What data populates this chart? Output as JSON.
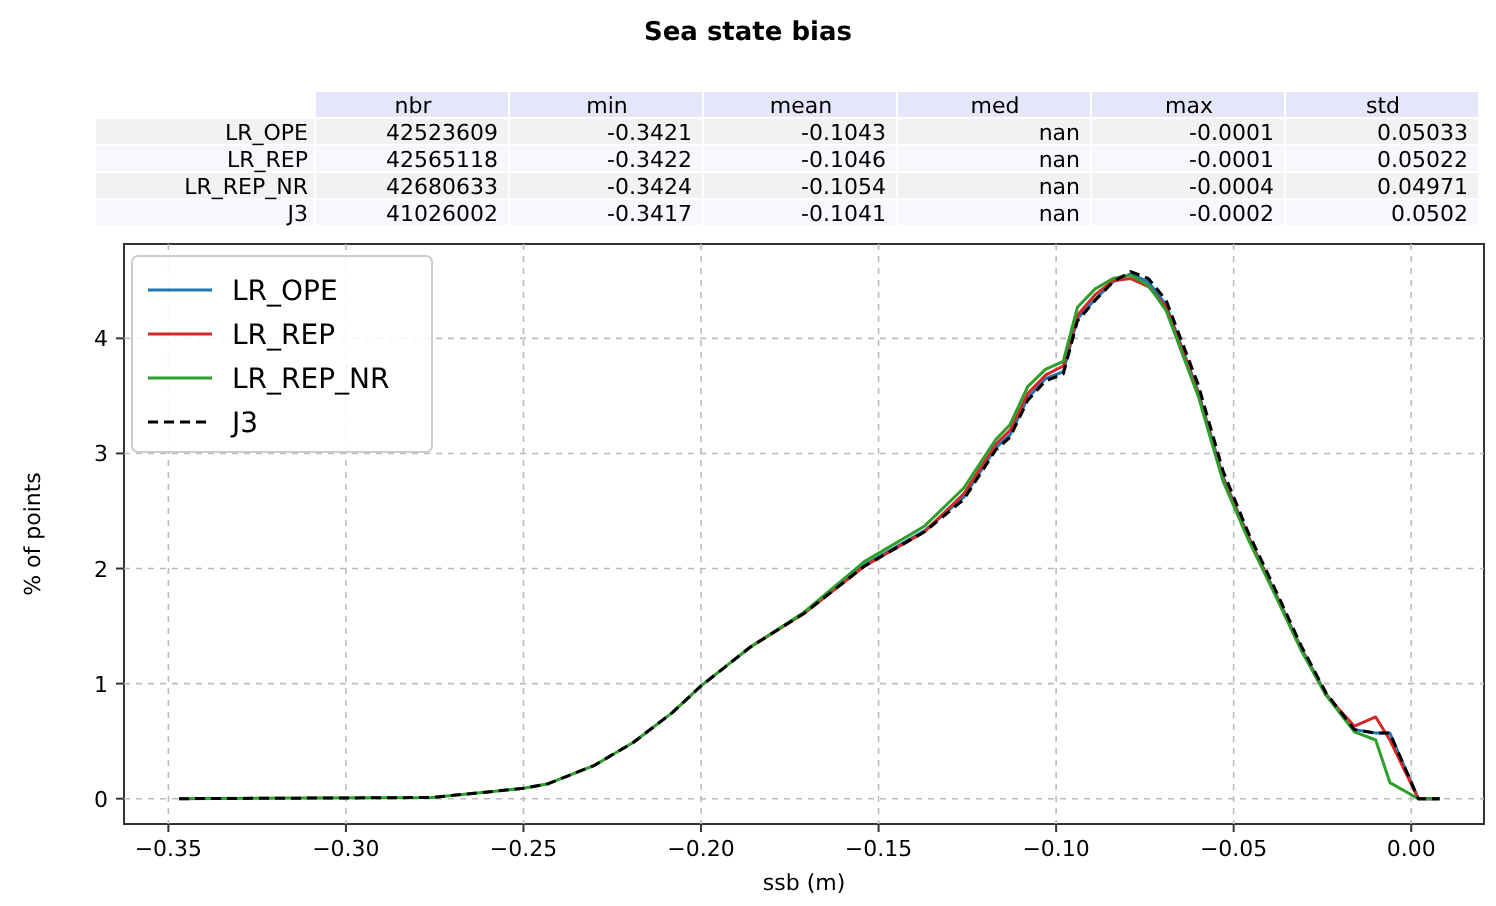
{
  "chart_data": [
    {
      "type": "other",
      "title": "Sea state bias",
      "categories": [
        "nbr",
        "min",
        "mean",
        "med",
        "max",
        "std"
      ],
      "y_categories": [
        "LR_OPE",
        "LR_REP",
        "LR_REP_NR",
        "J3"
      ],
      "cell_labels": [
        [
          "42523609",
          "-0.3421",
          "-0.1043",
          "nan",
          "-0.0001",
          "0.05033"
        ],
        [
          "42565118",
          "-0.3422",
          "-0.1046",
          "nan",
          "-0.0001",
          "0.05022"
        ],
        [
          "42680633",
          "-0.3424",
          "-0.1054",
          "nan",
          "-0.0004",
          "0.04971"
        ],
        [
          "41026002",
          "-0.3417",
          "-0.1041",
          "nan",
          "-0.0002",
          "0.0502"
        ]
      ]
    },
    {
      "type": "line",
      "xlabel": "ssb (m)",
      "ylabel": "% of points",
      "x": [
        -0.347,
        -0.276,
        -0.263,
        -0.25,
        -0.243,
        -0.23,
        -0.219,
        -0.208,
        -0.2,
        -0.186,
        -0.171,
        -0.154,
        -0.137,
        -0.126,
        -0.117,
        -0.113,
        -0.108,
        -0.103,
        -0.098,
        -0.094,
        -0.089,
        -0.084,
        -0.079,
        -0.074,
        -0.069,
        -0.06,
        -0.053,
        -0.046,
        -0.038,
        -0.031,
        -0.024,
        -0.016,
        -0.01,
        -0.006,
        0.002,
        0.008
      ],
      "series": [
        {
          "name": "LR_OPE",
          "color": "#1f77b4",
          "values": [
            null,
            null,
            null,
            null,
            null,
            null,
            null,
            null,
            null,
            null,
            1.61,
            2.03,
            2.33,
            2.62,
            3.05,
            3.16,
            3.48,
            3.65,
            3.71,
            4.17,
            4.34,
            4.49,
            4.56,
            4.49,
            4.29,
            3.54,
            2.8,
            2.29,
            1.77,
            1.31,
            0.91,
            0.6,
            0.57,
            0.57,
            0,
            0
          ]
        },
        {
          "name": "LR_REP",
          "color": "#d62728",
          "values": [
            null,
            null,
            null,
            null,
            null,
            null,
            null,
            null,
            null,
            1.32,
            1.61,
            2.02,
            2.32,
            2.65,
            3.08,
            3.2,
            3.52,
            3.68,
            3.76,
            4.2,
            4.38,
            4.5,
            4.52,
            4.45,
            4.27,
            3.52,
            2.78,
            2.28,
            1.76,
            1.3,
            0.9,
            0.63,
            0.71,
            0.51,
            0,
            0
          ]
        },
        {
          "name": "LR_REP_NR",
          "color": "#2ca02c",
          "values": [
            0,
            0.01,
            0.05,
            0.09,
            0.13,
            0.29,
            0.49,
            0.75,
            0.98,
            1.32,
            1.62,
            2.06,
            2.37,
            2.7,
            3.12,
            3.25,
            3.58,
            3.73,
            3.8,
            4.27,
            4.43,
            4.52,
            4.55,
            4.46,
            4.24,
            3.5,
            2.76,
            2.26,
            1.75,
            1.29,
            0.9,
            0.58,
            0.51,
            0.14,
            0,
            0
          ]
        },
        {
          "name": "J3",
          "color": "#000000",
          "line_style": "dashed",
          "values": [
            0,
            0.01,
            0.05,
            0.09,
            0.13,
            0.29,
            0.49,
            0.75,
            0.98,
            1.32,
            1.61,
            2.02,
            2.32,
            2.6,
            3.03,
            3.14,
            3.46,
            3.63,
            3.69,
            4.15,
            4.33,
            4.49,
            4.58,
            4.52,
            4.33,
            3.6,
            2.85,
            2.32,
            1.8,
            1.33,
            0.92,
            0.6,
            0.57,
            0.57,
            0,
            0
          ]
        }
      ],
      "xlim": [
        -0.3625,
        0.0205
      ],
      "xticks": [
        {
          "value": -0.35,
          "label": "−0.35"
        },
        {
          "value": -0.3,
          "label": "−0.30"
        },
        {
          "value": -0.25,
          "label": "−0.25"
        },
        {
          "value": -0.2,
          "label": "−0.20"
        },
        {
          "value": -0.15,
          "label": "−0.15"
        },
        {
          "value": -0.1,
          "label": "−0.10"
        },
        {
          "value": -0.05,
          "label": "−0.05"
        },
        {
          "value": 0,
          "label": "0.00"
        }
      ],
      "ylim": [
        -0.22,
        4.82
      ],
      "yticks": [
        0,
        1,
        2,
        3,
        4
      ],
      "grid": true,
      "legend": "top left"
    }
  ]
}
